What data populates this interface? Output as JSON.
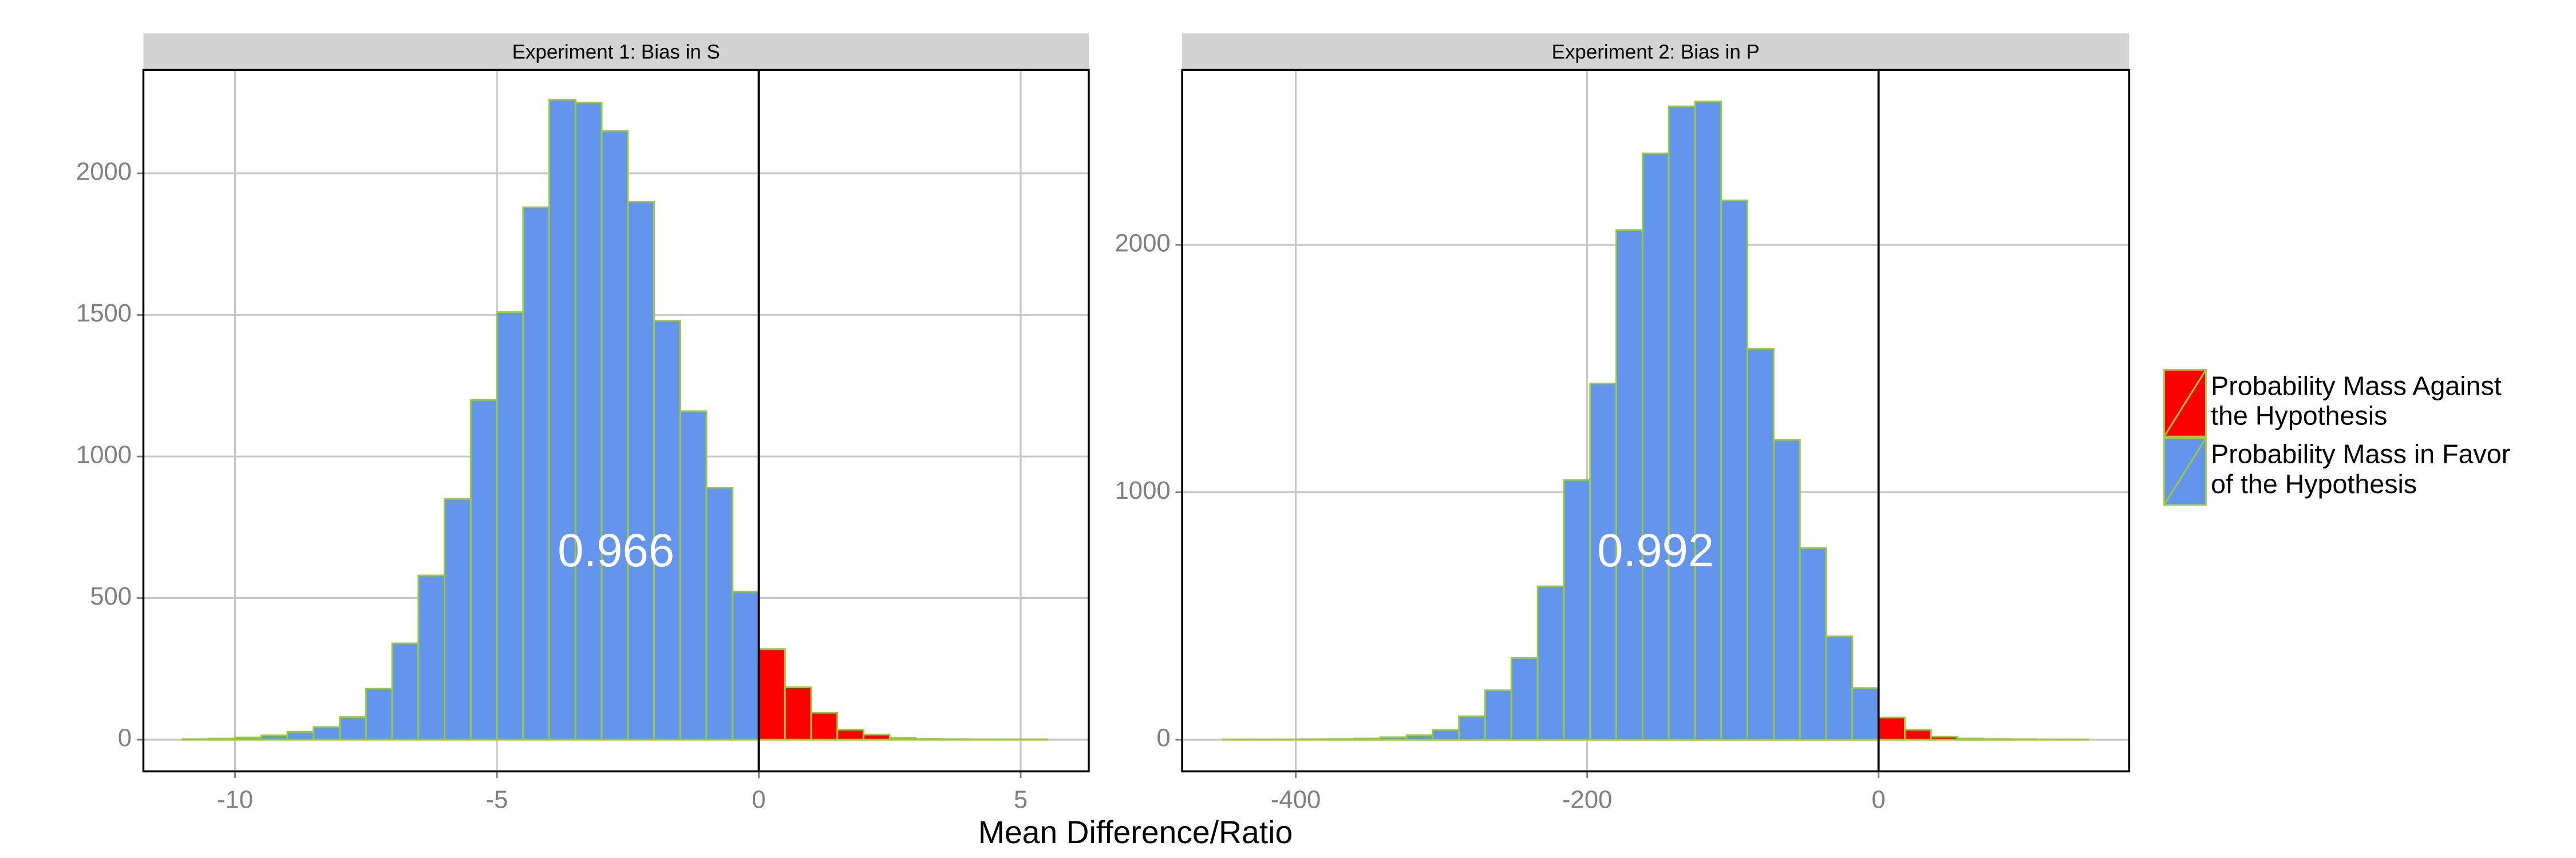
{
  "chart_data": [
    {
      "type": "histogram",
      "title": "Experiment 1: Bias in S",
      "annotation": "0.966",
      "bins": [
        -11,
        -10.5,
        -10,
        -9.5,
        -9,
        -8.5,
        -8,
        -7.5,
        -7,
        -6.5,
        -6,
        -5.5,
        -5,
        -4.5,
        -4,
        -3.5,
        -3,
        -2.5,
        -2,
        -1.5,
        -1,
        -0.5,
        0,
        0.5,
        1,
        1.5,
        2,
        2.5,
        3,
        3.5,
        4,
        4.5,
        5,
        5.5
      ],
      "series": [
        {
          "name": "Probability Mass Against the Hypothesis",
          "color": "#ff0000",
          "values": [
            null,
            null,
            null,
            null,
            null,
            null,
            null,
            null,
            null,
            null,
            null,
            null,
            null,
            null,
            null,
            null,
            null,
            null,
            null,
            null,
            null,
            null,
            320,
            185,
            95,
            35,
            18,
            6,
            3,
            2,
            1,
            1,
            1
          ]
        },
        {
          "name": "Probability Mass in Favor of the Hypothesis",
          "color": "#6495ed",
          "values": [
            2,
            4,
            8,
            15,
            28,
            45,
            80,
            180,
            340,
            580,
            850,
            1200,
            1510,
            1880,
            2260,
            2250,
            2150,
            1900,
            1480,
            1160,
            890,
            523,
            null,
            null,
            null,
            null,
            null,
            null,
            null,
            null,
            null,
            null,
            null
          ]
        }
      ],
      "edge_color": "#9acd32",
      "vline": 0,
      "xlim": [
        -11.75,
        6.3
      ],
      "xticks": [
        -10,
        -5,
        0,
        5
      ],
      "ylim": [
        -112,
        2365
      ],
      "yticks": [
        0,
        500,
        1000,
        1500,
        2000
      ],
      "grid": true
    },
    {
      "type": "histogram",
      "title": "Experiment 2: Bias in P",
      "annotation": "0.992",
      "bins": [
        -450,
        -432,
        -414,
        -396,
        -378,
        -360,
        -342,
        -324,
        -306,
        -288,
        -270,
        -252,
        -234,
        -216,
        -198,
        -180,
        -162,
        -144,
        -126,
        -108,
        -90,
        -72,
        -54,
        -36,
        -18,
        0,
        18,
        36,
        54,
        72,
        90,
        108,
        126,
        144
      ],
      "series": [
        {
          "color": "#ff0000",
          "values": [
            null,
            null,
            null,
            null,
            null,
            null,
            null,
            null,
            null,
            null,
            null,
            null,
            null,
            null,
            null,
            null,
            null,
            null,
            null,
            null,
            null,
            null,
            null,
            null,
            null,
            90,
            40,
            12,
            5,
            3,
            2,
            1,
            1
          ]
        },
        {
          "color": "#6495ed",
          "values": [
            1,
            1,
            1,
            2,
            3,
            5,
            10,
            18,
            40,
            95,
            200,
            330,
            620,
            1050,
            1440,
            2060,
            2370,
            2560,
            2580,
            2180,
            1580,
            1212,
            775,
            418,
            209,
            null,
            null,
            null,
            null,
            null,
            null,
            null,
            null
          ]
        }
      ],
      "edge_color": "#9acd32",
      "vline": 0,
      "xlim": [
        -478,
        172
      ],
      "xticks": [
        -400,
        -200,
        0
      ],
      "ylim": [
        -128,
        2707
      ],
      "yticks": [
        0,
        1000,
        2000
      ],
      "grid": true
    }
  ],
  "xlabel": "Mean Difference/Ratio"
}
